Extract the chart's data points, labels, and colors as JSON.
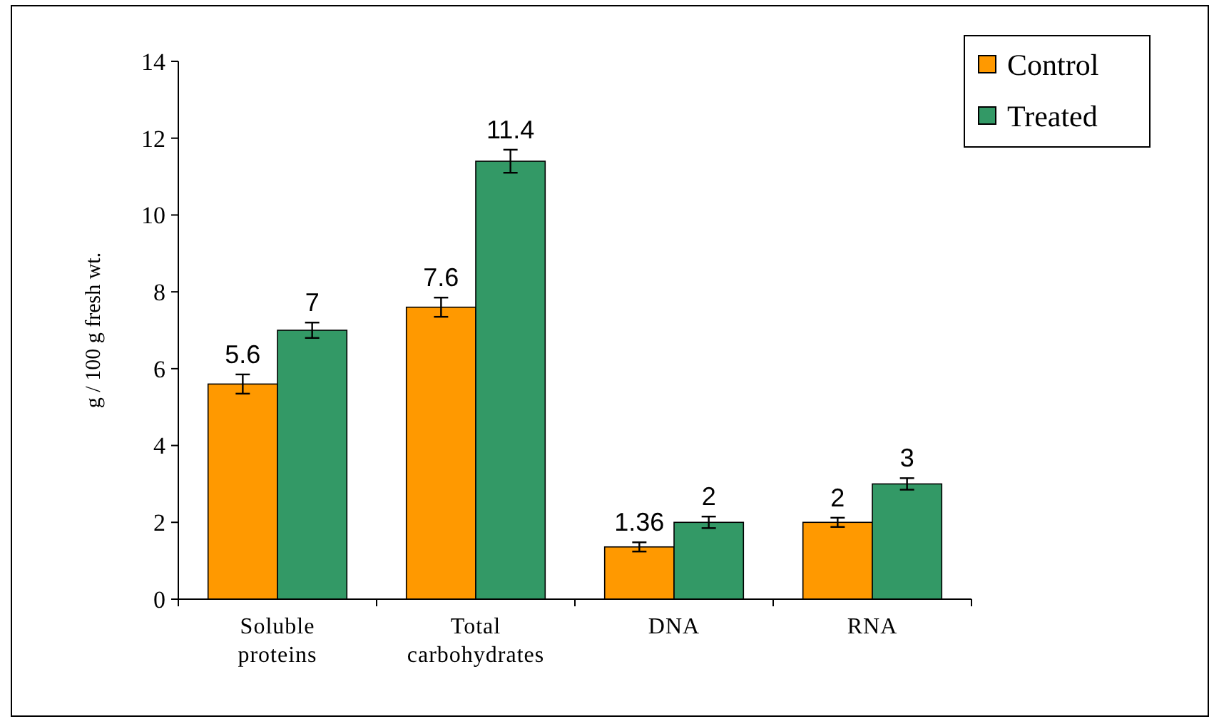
{
  "chart_data": {
    "type": "bar",
    "ylabel": "g / 100 g fresh wt.",
    "categories": [
      "Soluble proteins",
      "Total carbohydrates",
      "DNA",
      "RNA"
    ],
    "series": [
      {
        "name": "Control",
        "color": "#ff9900",
        "values": [
          5.6,
          7.6,
          1.36,
          2
        ],
        "errors": [
          0.25,
          0.25,
          0.12,
          0.12
        ],
        "value_labels": [
          "5.6",
          "7.6",
          "1.36",
          "2"
        ]
      },
      {
        "name": "Treated",
        "color": "#339966",
        "values": [
          7,
          11.4,
          2,
          3
        ],
        "errors": [
          0.2,
          0.3,
          0.15,
          0.15
        ],
        "value_labels": [
          "7",
          "11.4",
          "2",
          "3"
        ]
      }
    ],
    "ylim": [
      0,
      14
    ],
    "yticks": [
      0,
      2,
      4,
      6,
      8,
      10,
      12,
      14
    ],
    "grid": false,
    "legend": "top right"
  }
}
